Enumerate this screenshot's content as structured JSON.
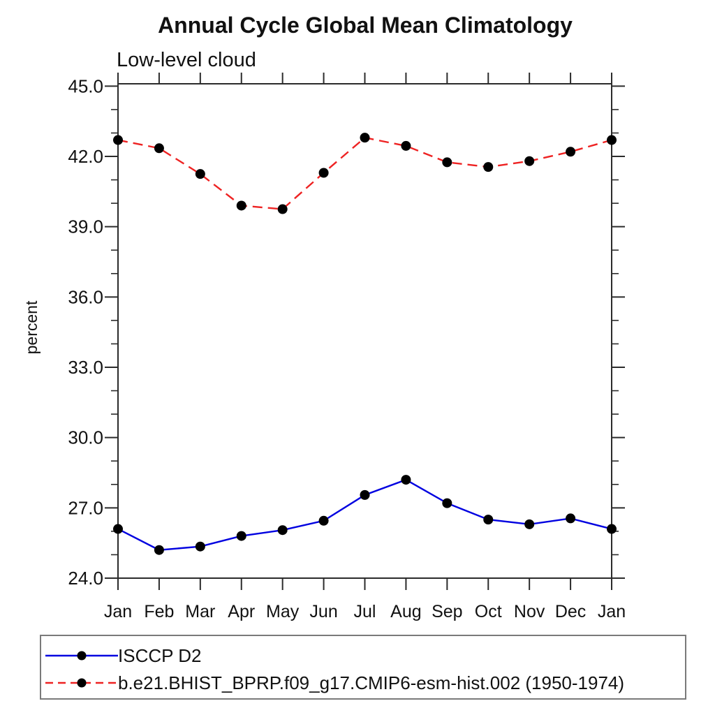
{
  "page": {
    "background": "#ffffff"
  },
  "chart_data": {
    "type": "line",
    "title": "Annual Cycle Global Mean Climatology",
    "subtitle": "Low-level cloud",
    "ylabel": "percent",
    "xlabel": "",
    "categories": [
      "Jan",
      "Feb",
      "Mar",
      "Apr",
      "May",
      "Jun",
      "Jul",
      "Aug",
      "Sep",
      "Oct",
      "Nov",
      "Dec",
      "Jan"
    ],
    "ylim": [
      24.0,
      45.1
    ],
    "yticks_major": [
      24.0,
      27.0,
      30.0,
      33.0,
      36.0,
      39.0,
      42.0,
      45.0
    ],
    "ytick_minor_step": 1.0,
    "ytick_label_decimals": 1,
    "grid": "off",
    "legend_position": "bottom-left",
    "axis_color": "#2b2b2b",
    "tick_label_color": "#111111",
    "marker_color": "#000000",
    "series": [
      {
        "name": "ISCCP D2",
        "line_color": "#0000e0",
        "line_style": "solid",
        "marker": "filled-circle",
        "values": [
          26.1,
          25.2,
          25.35,
          25.8,
          26.05,
          26.45,
          27.55,
          28.2,
          27.2,
          26.5,
          26.3,
          26.55,
          26.1
        ]
      },
      {
        "name": "b.e21.BHIST_BPRP.f09_g17.CMIP6-esm-hist.002 (1950-1974)",
        "line_color": "#ee2222",
        "line_style": "dashed",
        "marker": "filled-circle",
        "values": [
          42.7,
          42.35,
          41.25,
          39.9,
          39.75,
          41.3,
          42.8,
          42.45,
          41.75,
          41.55,
          41.8,
          42.2,
          42.7
        ]
      }
    ]
  }
}
